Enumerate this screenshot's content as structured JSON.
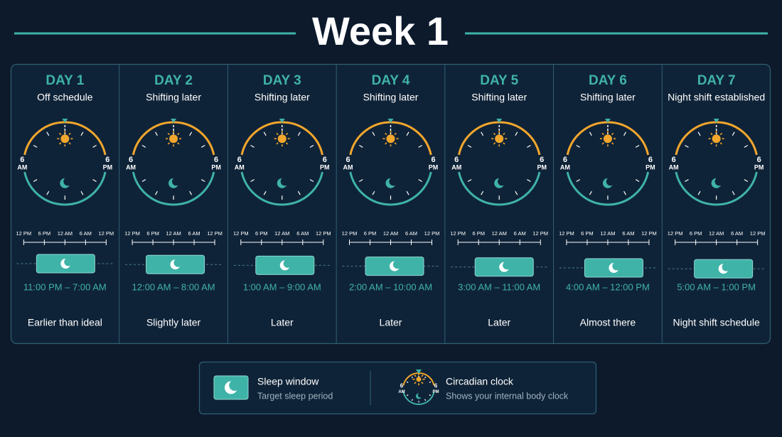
{
  "title": "Week 1",
  "clock_labels": {
    "left": "6",
    "left_sub": "AM",
    "right": "6",
    "right_sub": "PM"
  },
  "timeline_labels": [
    "12 PM",
    "6 PM",
    "12 AM",
    "6 AM",
    "12 PM"
  ],
  "days": [
    {
      "label": "DAY 1",
      "subtitle": "Off schedule",
      "sleep_window": "11:00 PM – 7:00 AM",
      "note": "Earlier than ideal"
    },
    {
      "label": "DAY 2",
      "subtitle": "Shifting later",
      "sleep_window": "12:00 AM – 8:00 AM",
      "note": "Slightly later"
    },
    {
      "label": "DAY 3",
      "subtitle": "Shifting later",
      "sleep_window": "1:00 AM – 9:00 AM",
      "note": "Later"
    },
    {
      "label": "DAY 4",
      "subtitle": "Shifting later",
      "sleep_window": "2:00 AM – 10:00 AM",
      "note": "Later"
    },
    {
      "label": "DAY 5",
      "subtitle": "Shifting later",
      "sleep_window": "3:00 AM – 11:00 AM",
      "note": "Later"
    },
    {
      "label": "DAY 6",
      "subtitle": "Shifting later",
      "sleep_window": "4:00 AM – 12:00 PM",
      "note": "Almost there"
    },
    {
      "label": "DAY 7",
      "subtitle": "Night shift established",
      "sleep_window": "5:00 AM – 1:00 PM",
      "note": "Night shift schedule"
    }
  ],
  "legend": [
    {
      "title": "Sleep window",
      "description": "Target sleep period"
    },
    {
      "title": "Circadian clock",
      "description": "Shows your internal body clock"
    }
  ]
}
